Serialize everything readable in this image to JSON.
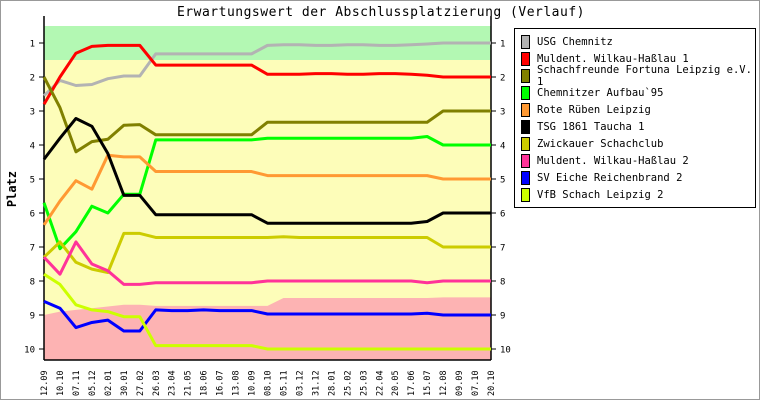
{
  "chart_data": {
    "type": "line",
    "title": "Erwartungswert der Abschlussplatzierung (Verlauf)",
    "ylabel": "Platz",
    "xlabel": "",
    "ylim": [
      0.5,
      10.3
    ],
    "y_ticks": [
      "1",
      "2",
      "3",
      "4",
      "5",
      "6",
      "7",
      "8",
      "9",
      "10"
    ],
    "legend_position": "right",
    "x": [
      "12.09",
      "10.10",
      "07.11",
      "05.12",
      "02.01",
      "30.01",
      "27.02",
      "26.03",
      "23.04",
      "21.05",
      "18.06",
      "16.07",
      "13.08",
      "10.09",
      "08.10",
      "05.11",
      "03.12",
      "31.12",
      "28.01",
      "25.02",
      "25.03",
      "22.04",
      "20.05",
      "17.06",
      "15.07",
      "12.08",
      "09.09",
      "07.10",
      "20.10"
    ],
    "bands": {
      "promotion": {
        "from": 0.5,
        "to": 1.5,
        "color": "#b3f8b3"
      },
      "middle": {
        "color": "#fdfdb9"
      },
      "relegation": {
        "color": "#fdb3b3",
        "boundary": [
          9.0,
          8.9,
          8.85,
          8.8,
          8.75,
          8.7,
          8.7,
          8.73,
          8.73,
          8.73,
          8.73,
          8.73,
          8.73,
          8.73,
          8.73,
          8.5,
          8.5,
          8.5,
          8.5,
          8.5,
          8.5,
          8.5,
          8.5,
          8.5,
          8.5,
          8.48,
          8.48,
          8.48,
          8.48
        ]
      }
    },
    "series": [
      {
        "name": "USG Chemnitz",
        "color": "#b3b3b3",
        "values": [
          2.55,
          2.1,
          2.25,
          2.22,
          2.05,
          1.97,
          1.97,
          1.32,
          1.32,
          1.32,
          1.32,
          1.32,
          1.32,
          1.32,
          1.07,
          1.05,
          1.05,
          1.07,
          1.07,
          1.05,
          1.05,
          1.07,
          1.07,
          1.05,
          1.03,
          1.0,
          1.0,
          1.0,
          1.0
        ]
      },
      {
        "name": "Muldent. Wilkau-Haßlau 1",
        "color": "#ff0000",
        "values": [
          2.8,
          2.0,
          1.3,
          1.1,
          1.07,
          1.07,
          1.07,
          1.65,
          1.65,
          1.65,
          1.65,
          1.65,
          1.65,
          1.65,
          1.92,
          1.92,
          1.92,
          1.9,
          1.9,
          1.92,
          1.92,
          1.9,
          1.9,
          1.92,
          1.95,
          2.0,
          2.0,
          2.0,
          2.0
        ]
      },
      {
        "name": "Schachfreunde Fortuna Leipzig e.V. 1",
        "color": "#808000",
        "values": [
          2.0,
          2.9,
          4.2,
          3.9,
          3.83,
          3.42,
          3.4,
          3.7,
          3.7,
          3.7,
          3.7,
          3.7,
          3.7,
          3.7,
          3.33,
          3.33,
          3.33,
          3.33,
          3.33,
          3.33,
          3.33,
          3.33,
          3.33,
          3.33,
          3.33,
          3.0,
          3.0,
          3.0,
          3.0
        ]
      },
      {
        "name": "Chemnitzer Aufbau`95",
        "color": "#00ff00",
        "values": [
          5.7,
          7.05,
          6.55,
          5.8,
          6.0,
          5.45,
          5.45,
          3.85,
          3.85,
          3.85,
          3.85,
          3.85,
          3.85,
          3.85,
          3.8,
          3.8,
          3.8,
          3.8,
          3.8,
          3.8,
          3.8,
          3.8,
          3.8,
          3.8,
          3.75,
          4.0,
          4.0,
          4.0,
          4.0
        ]
      },
      {
        "name": "Rote Rüben Leipzig",
        "color": "#ff9933",
        "values": [
          6.35,
          5.65,
          5.05,
          5.3,
          4.3,
          4.35,
          4.35,
          4.78,
          4.78,
          4.78,
          4.78,
          4.78,
          4.78,
          4.78,
          4.9,
          4.9,
          4.9,
          4.9,
          4.9,
          4.9,
          4.9,
          4.9,
          4.9,
          4.9,
          4.9,
          5.0,
          5.0,
          5.0,
          5.0
        ]
      },
      {
        "name": "TSG 1861 Taucha 1",
        "color": "#000000",
        "values": [
          4.42,
          3.8,
          3.22,
          3.45,
          4.25,
          5.48,
          5.48,
          6.05,
          6.05,
          6.05,
          6.05,
          6.05,
          6.05,
          6.05,
          6.3,
          6.3,
          6.3,
          6.3,
          6.3,
          6.3,
          6.3,
          6.3,
          6.3,
          6.3,
          6.25,
          6.0,
          6.0,
          6.0,
          6.0
        ]
      },
      {
        "name": "Zwickauer Schachclub",
        "color": "#cccc00",
        "values": [
          7.3,
          6.85,
          7.45,
          7.65,
          7.75,
          6.6,
          6.6,
          6.72,
          6.72,
          6.72,
          6.72,
          6.72,
          6.72,
          6.72,
          6.72,
          6.7,
          6.72,
          6.72,
          6.72,
          6.72,
          6.72,
          6.72,
          6.72,
          6.72,
          6.72,
          7.0,
          7.0,
          7.0,
          7.0
        ]
      },
      {
        "name": "Muldent. Wilkau-Haßlau 2",
        "color": "#ff3399",
        "values": [
          7.3,
          7.8,
          6.85,
          7.5,
          7.7,
          8.1,
          8.1,
          8.05,
          8.05,
          8.05,
          8.05,
          8.05,
          8.05,
          8.05,
          8.0,
          8.0,
          8.0,
          8.0,
          8.0,
          8.0,
          8.0,
          8.0,
          8.0,
          8.0,
          8.05,
          8.0,
          8.0,
          8.0,
          8.0
        ]
      },
      {
        "name": "SV Eiche Reichenbrand 2",
        "color": "#0000ff",
        "values": [
          8.6,
          8.8,
          9.37,
          9.22,
          9.15,
          9.47,
          9.47,
          8.85,
          8.87,
          8.87,
          8.85,
          8.87,
          8.87,
          8.87,
          8.97,
          8.97,
          8.97,
          8.97,
          8.97,
          8.97,
          8.97,
          8.97,
          8.97,
          8.97,
          8.95,
          9.0,
          9.0,
          9.0,
          9.0
        ]
      },
      {
        "name": "VfB Schach Leipzig 2",
        "color": "#ccff00",
        "values": [
          7.8,
          8.1,
          8.7,
          8.85,
          8.9,
          9.05,
          9.05,
          9.9,
          9.9,
          9.9,
          9.9,
          9.9,
          9.9,
          9.9,
          10.0,
          10.0,
          10.0,
          10.0,
          10.0,
          10.0,
          10.0,
          10.0,
          10.0,
          10.0,
          10.0,
          10.0,
          10.0,
          10.0,
          10.0
        ]
      }
    ]
  }
}
